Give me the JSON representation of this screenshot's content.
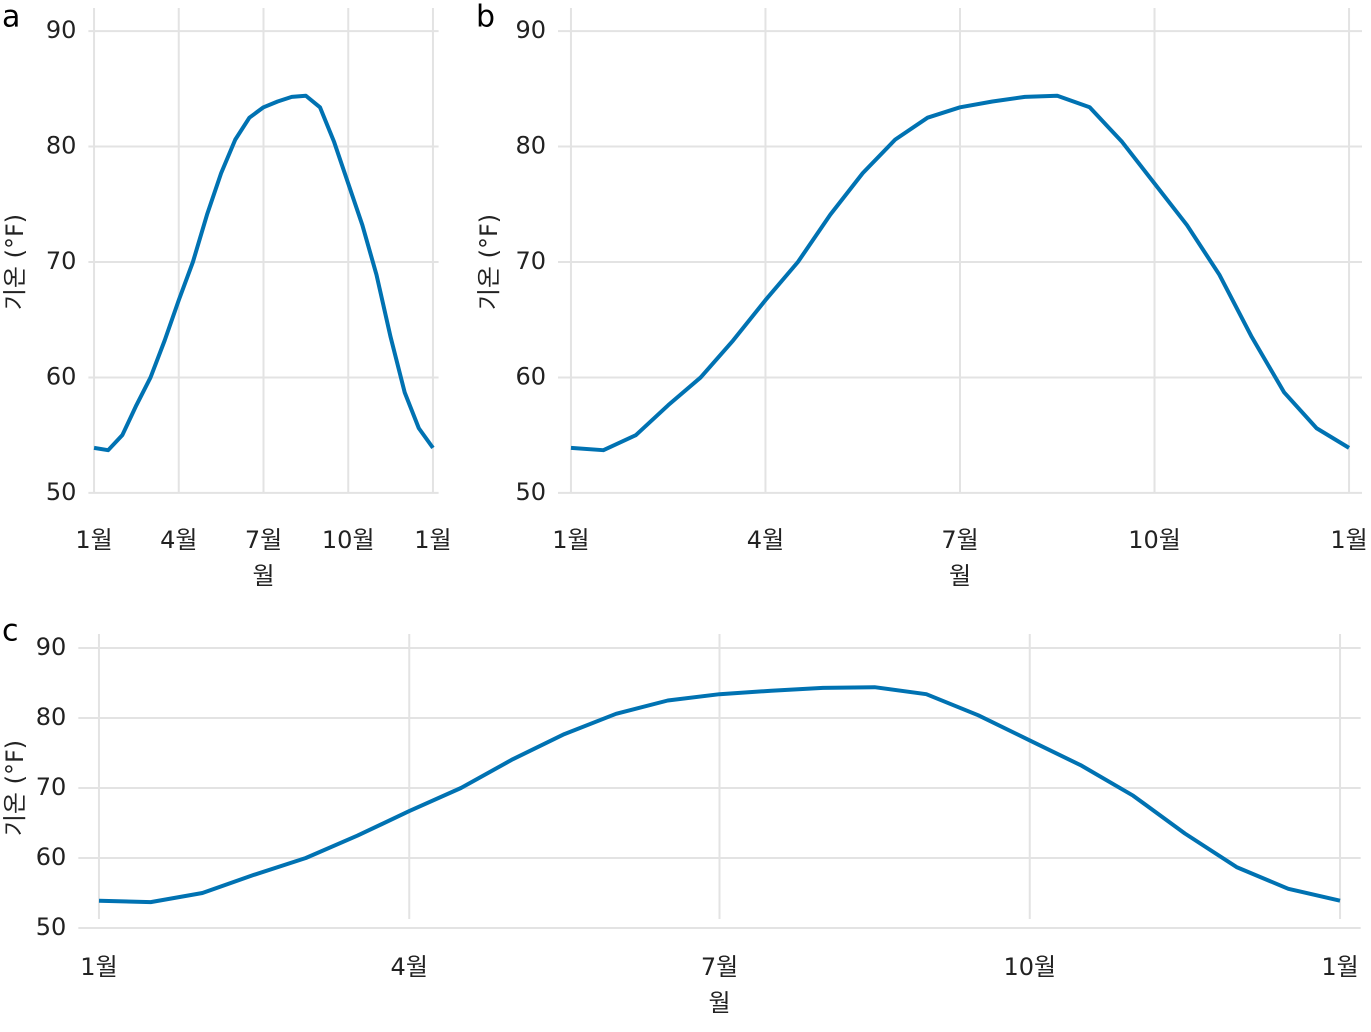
{
  "chart_data": [
    {
      "type": "line",
      "panel_label": "a",
      "x_label": "월",
      "y_label": "기온 (°F)",
      "x": [
        1,
        1.5,
        2,
        2.5,
        3,
        3.5,
        4,
        4.5,
        5,
        5.5,
        6,
        6.5,
        7,
        7.5,
        8,
        8.5,
        9,
        9.5,
        10,
        10.5,
        11,
        11.5,
        12,
        12.5,
        13
      ],
      "series": [
        {
          "color": "#0072b2",
          "values": [
            53.9,
            53.7,
            55.0,
            57.6,
            60.0,
            63.2,
            66.7,
            70.0,
            74.1,
            77.7,
            80.6,
            82.5,
            83.4,
            83.9,
            84.3,
            84.4,
            83.4,
            80.4,
            76.8,
            73.2,
            68.9,
            63.5,
            58.7,
            55.6,
            53.9
          ]
        }
      ],
      "xlim": [
        0.8,
        13.2
      ],
      "xticks": [
        {
          "value": 1,
          "label": "1월"
        },
        {
          "value": 4,
          "label": "4월"
        },
        {
          "value": 7,
          "label": "7월"
        },
        {
          "value": 10,
          "label": "10월"
        },
        {
          "value": 13,
          "label": "1월"
        }
      ],
      "ylim": [
        48,
        92
      ],
      "yticks": [
        50,
        60,
        70,
        80,
        90
      ],
      "grid": true
    },
    {
      "type": "line",
      "panel_label": "b",
      "x_label": "월",
      "y_label": "기온 (°F)",
      "x": [
        1,
        1.5,
        2,
        2.5,
        3,
        3.5,
        4,
        4.5,
        5,
        5.5,
        6,
        6.5,
        7,
        7.5,
        8,
        8.5,
        9,
        9.5,
        10,
        10.5,
        11,
        11.5,
        12,
        12.5,
        13
      ],
      "series": [
        {
          "color": "#0072b2",
          "values": [
            53.9,
            53.7,
            55.0,
            57.6,
            60.0,
            63.2,
            66.7,
            70.0,
            74.1,
            77.7,
            80.6,
            82.5,
            83.4,
            83.9,
            84.3,
            84.4,
            83.4,
            80.4,
            76.8,
            73.2,
            68.9,
            63.5,
            58.7,
            55.6,
            53.9
          ]
        }
      ],
      "xlim": [
        0.8,
        13.2
      ],
      "xticks": [
        {
          "value": 1,
          "label": "1월"
        },
        {
          "value": 4,
          "label": "4월"
        },
        {
          "value": 7,
          "label": "7월"
        },
        {
          "value": 10,
          "label": "10월"
        },
        {
          "value": 13,
          "label": "1월"
        }
      ],
      "ylim": [
        48,
        92
      ],
      "yticks": [
        50,
        60,
        70,
        80,
        90
      ],
      "grid": true
    },
    {
      "type": "line",
      "panel_label": "c",
      "x_label": "월",
      "y_label": "기온 (°F)",
      "x": [
        1,
        1.5,
        2,
        2.5,
        3,
        3.5,
        4,
        4.5,
        5,
        5.5,
        6,
        6.5,
        7,
        7.5,
        8,
        8.5,
        9,
        9.5,
        10,
        10.5,
        11,
        11.5,
        12,
        12.5,
        13
      ],
      "series": [
        {
          "color": "#0072b2",
          "values": [
            53.9,
            53.7,
            55.0,
            57.6,
            60.0,
            63.2,
            66.7,
            70.0,
            74.1,
            77.7,
            80.6,
            82.5,
            83.4,
            83.9,
            84.3,
            84.4,
            83.4,
            80.4,
            76.8,
            73.2,
            68.9,
            63.5,
            58.7,
            55.6,
            53.9
          ]
        }
      ],
      "xlim": [
        0.8,
        13.2
      ],
      "xticks": [
        {
          "value": 1,
          "label": "1월"
        },
        {
          "value": 4,
          "label": "4월"
        },
        {
          "value": 7,
          "label": "7월"
        },
        {
          "value": 10,
          "label": "10월"
        },
        {
          "value": 13,
          "label": "1월"
        }
      ],
      "ylim": [
        48,
        92
      ],
      "yticks": [
        50,
        60,
        70,
        80,
        90
      ],
      "grid": true
    }
  ]
}
